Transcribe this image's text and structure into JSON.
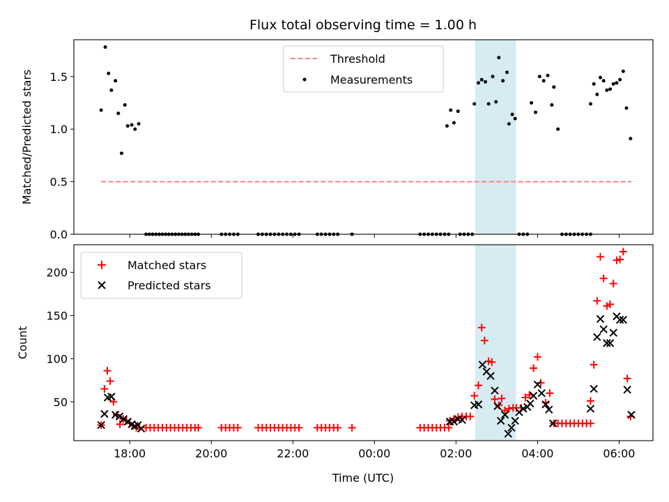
{
  "chart_data": {
    "type": "scatter",
    "title": "Flux total observing time = 1.00 h",
    "xlabel": "Time (UTC)",
    "x_tick_labels": [
      "18:00",
      "20:00",
      "22:00",
      "00:00",
      "02:00",
      "04:00",
      "06:00"
    ],
    "x_tick_hours": [
      18,
      20,
      22,
      24,
      26,
      28,
      30
    ],
    "xlim": [
      16.63,
      30.83
    ],
    "highlight_span": [
      26.47,
      27.47
    ],
    "colors": {
      "threshold": "#ff7f7f",
      "measurements": "#000000",
      "matched": "#ff0000",
      "predicted": "#000000",
      "span": "#add8e6"
    },
    "panels": [
      {
        "ylabel": "Matched/Predicted stars",
        "ylim": [
          0,
          1.85
        ],
        "yticks": [
          0.0,
          0.5,
          1.0,
          1.5
        ],
        "y_tick_labels": [
          "0.0",
          "0.5",
          "1.0",
          "1.5"
        ],
        "legend": {
          "placement": "top-center",
          "entries": [
            "Threshold",
            "Measurements"
          ]
        },
        "threshold": {
          "name": "Threshold",
          "value": 0.5,
          "x_range": [
            17.3,
            30.3
          ]
        },
        "measurements": {
          "name": "Measurements",
          "x": [
            17.3,
            17.4,
            17.48,
            17.55,
            17.65,
            17.72,
            17.8,
            17.88,
            17.95,
            18.05,
            18.13,
            18.22,
            18.4,
            18.48,
            18.56,
            18.64,
            18.72,
            18.8,
            18.88,
            18.96,
            19.04,
            19.12,
            19.2,
            19.28,
            19.36,
            19.44,
            19.52,
            19.6,
            19.68,
            20.25,
            20.35,
            20.45,
            20.55,
            20.65,
            21.15,
            21.25,
            21.35,
            21.45,
            21.55,
            21.65,
            21.75,
            21.85,
            21.95,
            22.05,
            22.15,
            22.6,
            22.7,
            22.8,
            22.9,
            23.0,
            23.1,
            23.45,
            25.12,
            25.22,
            25.32,
            25.42,
            25.52,
            25.62,
            25.72,
            25.82,
            25.78,
            25.87,
            25.95,
            26.05,
            26.1,
            26.2,
            26.3,
            26.4,
            26.45,
            26.55,
            26.63,
            26.72,
            26.8,
            26.9,
            26.98,
            27.05,
            27.15,
            27.25,
            27.3,
            27.38,
            27.45,
            27.55,
            27.65,
            27.75,
            27.85,
            27.95,
            28.05,
            28.15,
            28.25,
            28.35,
            28.4,
            28.5,
            28.6,
            28.7,
            28.8,
            28.9,
            29.0,
            29.1,
            29.2,
            29.3,
            29.3,
            29.38,
            29.46,
            29.54,
            29.62,
            29.7,
            29.78,
            29.86,
            29.94,
            30.02,
            30.1,
            30.18,
            30.28
          ],
          "y": [
            1.18,
            1.78,
            1.53,
            1.37,
            1.46,
            1.15,
            0.77,
            1.23,
            1.03,
            1.04,
            1.0,
            1.05,
            0,
            0,
            0,
            0,
            0,
            0,
            0,
            0,
            0,
            0,
            0,
            0,
            0,
            0,
            0,
            0,
            0,
            0,
            0,
            0,
            0,
            0,
            0,
            0,
            0,
            0,
            0,
            0,
            0,
            0,
            0,
            0,
            0,
            0,
            0,
            0,
            0,
            0,
            0,
            0,
            0,
            0,
            0,
            0,
            0,
            0,
            0,
            0,
            1.03,
            1.18,
            1.06,
            1.17,
            0,
            0,
            0,
            0,
            1.24,
            1.44,
            1.47,
            1.45,
            1.24,
            1.5,
            1.26,
            1.68,
            1.46,
            1.54,
            1.05,
            1.14,
            1.1,
            0,
            0,
            0,
            1.25,
            1.16,
            1.5,
            1.46,
            1.51,
            1.23,
            1.4,
            1.0,
            0,
            0,
            0,
            0,
            0,
            0,
            0,
            0,
            1.24,
            1.43,
            1.33,
            1.49,
            1.46,
            1.37,
            1.38,
            1.43,
            1.44,
            1.47,
            1.55,
            1.2,
            0.91
          ]
        }
      },
      {
        "ylabel": "Count",
        "ylim": [
          5,
          232
        ],
        "yticks": [
          50,
          100,
          150,
          200
        ],
        "y_tick_labels": [
          "50",
          "100",
          "150",
          "200"
        ],
        "legend": {
          "placement": "top-left",
          "entries": [
            "Matched stars",
            "Predicted stars"
          ]
        },
        "series": [
          {
            "name": "Matched stars",
            "marker": "plus",
            "x": [
              17.3,
              17.38,
              17.45,
              17.52,
              17.6,
              17.68,
              17.76,
              17.84,
              17.92,
              18.0,
              18.08,
              18.16,
              18.24,
              18.4,
              18.5,
              18.6,
              18.7,
              18.8,
              18.9,
              19.0,
              19.1,
              19.2,
              19.3,
              19.4,
              19.5,
              19.6,
              19.68,
              20.25,
              20.35,
              20.45,
              20.55,
              20.65,
              21.15,
              21.25,
              21.35,
              21.45,
              21.55,
              21.65,
              21.75,
              21.85,
              21.95,
              22.05,
              22.15,
              22.6,
              22.7,
              22.8,
              22.9,
              23.0,
              23.1,
              23.45,
              25.12,
              25.22,
              25.32,
              25.42,
              25.52,
              25.62,
              25.72,
              25.82,
              25.85,
              25.95,
              26.05,
              26.15,
              26.25,
              26.35,
              26.45,
              26.55,
              26.63,
              26.7,
              26.8,
              26.88,
              26.95,
              27.05,
              27.12,
              27.2,
              27.3,
              27.4,
              27.48,
              27.6,
              27.7,
              27.8,
              27.9,
              28.0,
              28.08,
              28.2,
              28.3,
              28.4,
              28.5,
              28.6,
              28.7,
              28.8,
              28.9,
              29.0,
              29.1,
              29.2,
              29.3,
              29.3,
              29.38,
              29.46,
              29.54,
              29.62,
              29.7,
              29.78,
              29.86,
              29.94,
              30.02,
              30.1,
              30.2,
              30.28
            ],
            "y": [
              23,
              65,
              86,
              74,
              50,
              35,
              24,
              30,
              28,
              25,
              22,
              20,
              20,
              20,
              20,
              20,
              20,
              20,
              20,
              20,
              20,
              20,
              20,
              20,
              20,
              20,
              20,
              20,
              20,
              20,
              20,
              20,
              20,
              20,
              20,
              20,
              20,
              20,
              20,
              20,
              20,
              20,
              20,
              20,
              20,
              20,
              20,
              20,
              20,
              20,
              20,
              20,
              20,
              20,
              20,
              20,
              20,
              20,
              28,
              30,
              32,
              33,
              33,
              33,
              57,
              69,
              136,
              121,
              97,
              96,
              53,
              46,
              54,
              40,
              42,
              43,
              43,
              43,
              55,
              58,
              89,
              102,
              72,
              49,
              60,
              25,
              25,
              25,
              25,
              25,
              25,
              25,
              25,
              25,
              25,
              51,
              93,
              167,
              218,
              193,
              161,
              163,
              187,
              214,
              215,
              224,
              77,
              33
            ]
          },
          {
            "name": "Predicted stars",
            "marker": "x",
            "x": [
              17.3,
              17.38,
              17.46,
              17.55,
              17.65,
              17.75,
              17.85,
              17.95,
              18.05,
              18.12,
              18.2,
              18.28,
              25.85,
              25.95,
              26.05,
              26.15,
              26.45,
              26.55,
              26.65,
              26.75,
              26.85,
              26.95,
              27.02,
              27.1,
              27.2,
              27.28,
              27.36,
              27.45,
              27.55,
              27.65,
              27.75,
              27.82,
              27.9,
              28.0,
              28.1,
              28.2,
              28.28,
              28.38,
              29.3,
              29.38,
              29.46,
              29.54,
              29.62,
              29.7,
              29.78,
              29.86,
              29.94,
              30.02,
              30.1,
              30.2,
              30.3
            ],
            "y": [
              23,
              36,
              55,
              56,
              35,
              33,
              30,
              27,
              24,
              22,
              23,
              19,
              27,
              27,
              30,
              29,
              46,
              47,
              93,
              85,
              80,
              63,
              45,
              28,
              35,
              13,
              20,
              28,
              38,
              42,
              44,
              48,
              57,
              70,
              60,
              47,
              41,
              25,
              42,
              65,
              125,
              146,
              134,
              118,
              118,
              130,
              149,
              145,
              145,
              64,
              35
            ]
          }
        ]
      }
    ]
  }
}
